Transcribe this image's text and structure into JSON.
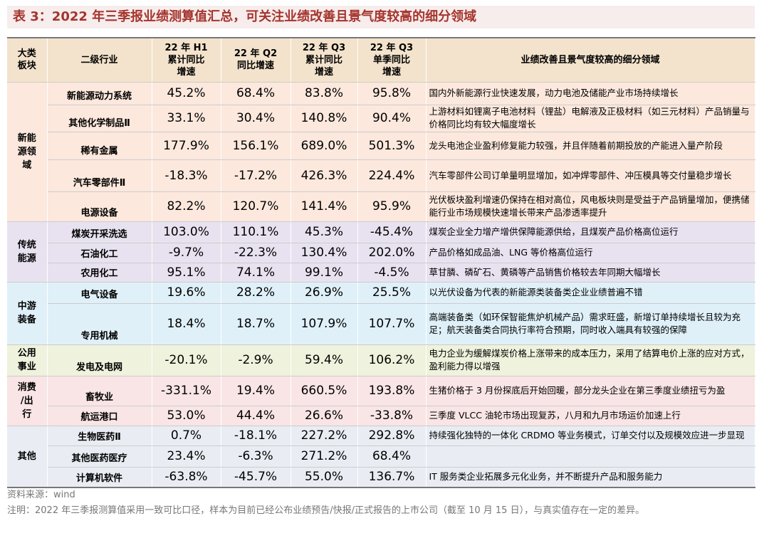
{
  "title": "表 3：2022 年三季报业绩测算值汇总，可关注业绩改善且景气度较高的细分领域",
  "table": {
    "header": [
      "大类\n板块",
      "二级行业",
      "22 年 H1\n累计同比\n增速",
      "22 年 Q2\n同比增速",
      "22 年 Q3\n累计同比\n增速",
      "22 年 Q3\n单季同比\n增速",
      "业绩改善且景气度较高的细分领域"
    ],
    "groups": [
      {
        "name": "新能\n源领\n域",
        "rows": [
          {
            "industry": "新能源动力系统",
            "values": [
              "45.2%",
              "68.4%",
              "83.8%",
              "95.8%"
            ],
            "area": "国内外新能源行业快速发展，动力电池及储能产业市场持续增长"
          },
          {
            "industry": "其他化学制品Ⅱ",
            "values": [
              "33.1%",
              "30.4%",
              "140.8%",
              "90.4%"
            ],
            "area": "上游材料如锂离子电池材料（锂盐）电解液及正极材料（如三元材料）产品销量与价格同比均有较大幅度增长"
          },
          {
            "industry": "稀有金属",
            "values": [
              "177.9%",
              "156.1%",
              "689.0%",
              "501.3%"
            ],
            "area": "龙头电池企业盈利修复能力较强，并且伴随着前期投放的产能进入量产阶段"
          },
          {
            "industry": "汽车零部件Ⅱ",
            "values": [
              "-18.3%",
              "-17.2%",
              "426.3%",
              "224.4%"
            ],
            "area": "汽车零部件公司订单量明显增加，如冲焊零部件、冲压模具等交付量稳步增长"
          },
          {
            "industry": "电源设备",
            "values": [
              "82.2%",
              "120.7%",
              "141.4%",
              "95.9%"
            ],
            "area": "光伏板块盈利增速仍保持在相对高位，风电板块则是受益于产品销量增加，便携储能行业市场规模快速增长带来产品渗透率提升"
          }
        ]
      },
      {
        "name": "传统\n能源",
        "rows": [
          {
            "industry": "煤炭开采洗选",
            "values": [
              "103.0%",
              "110.1%",
              "45.3%",
              "-45.4%"
            ],
            "area": "煤炭企业全力增产增供保障能源供给，且煤炭产品价格高位运行"
          },
          {
            "industry": "石油化工",
            "values": [
              "-9.7%",
              "-22.3%",
              "130.4%",
              "202.0%"
            ],
            "area": "产品价格如成品油、LNG 等价格高位运行"
          },
          {
            "industry": "农用化工",
            "values": [
              "95.1%",
              "74.1%",
              "99.1%",
              "-4.5%"
            ],
            "area": "草甘膦、磷矿石、黄磷等产品销售价格较去年同期大幅增长"
          }
        ]
      },
      {
        "name": "中游\n装备",
        "rows": [
          {
            "industry": "电气设备",
            "values": [
              "19.6%",
              "28.2%",
              "26.9%",
              "25.5%"
            ],
            "area": "以光伏设备为代表的新能源类装备类企业业绩普遍不错"
          },
          {
            "industry": "专用机械",
            "values": [
              "18.4%",
              "18.7%",
              "107.9%",
              "107.7%"
            ],
            "area": "高端装备类（如环保智能焦炉机械产品）需求旺盛，新增订单持续增长且较为充足；航天装备类合同执行率符合预期，同时收入端具有较强的保障"
          }
        ]
      },
      {
        "name": "公用\n事业",
        "rows": [
          {
            "industry": "发电及电网",
            "values": [
              "-20.1%",
              "-2.9%",
              "59.4%",
              "106.2%"
            ],
            "area": "电力企业为缓解煤炭价格上涨带来的成本压力，采用了结算电价上涨的应对方式，盈利能力得以增强"
          }
        ]
      },
      {
        "name": "消费\n/出\n行",
        "rows": [
          {
            "industry": "畜牧业",
            "values": [
              "-331.1%",
              "19.4%",
              "660.5%",
              "193.8%"
            ],
            "area": "生猪价格于 3 月份探底后开始回暖，部分龙头企业在第三季度业绩扭亏为盈"
          },
          {
            "industry": "航运港口",
            "values": [
              "53.0%",
              "44.4%",
              "26.6%",
              "-33.8%"
            ],
            "area": "三季度 VLCC 油轮市场出现复苏，八月和九月市场运价加速上行"
          }
        ]
      },
      {
        "name": "其他",
        "rows": [
          {
            "industry": "生物医药Ⅱ",
            "values": [
              "0.7%",
              "-18.1%",
              "227.2%",
              "292.8%"
            ],
            "area": "持续强化独特的一体化 CRDMO 等业务模式，订单交付以及规模效应进一步显现"
          },
          {
            "industry": "其他医药医疗",
            "values": [
              "23.4%",
              "-6.3%",
              "271.2%",
              "68.4%"
            ],
            "area": ""
          },
          {
            "industry": "计算机软件",
            "values": [
              "-63.8%",
              "-45.7%",
              "55.0%",
              "136.7%"
            ],
            "area": "IT 服务类企业拓展多元化业务，并不断提升产品和服务能力"
          }
        ]
      }
    ]
  },
  "source": "资料来源：wind",
  "note": "注明：2022 年三季报测算值采用一致可比口径，样本为目前已经公布业绩预告/快报/正式报告的上市公司（截至 10 月 15 日），与真实值存在一定的差异。"
}
